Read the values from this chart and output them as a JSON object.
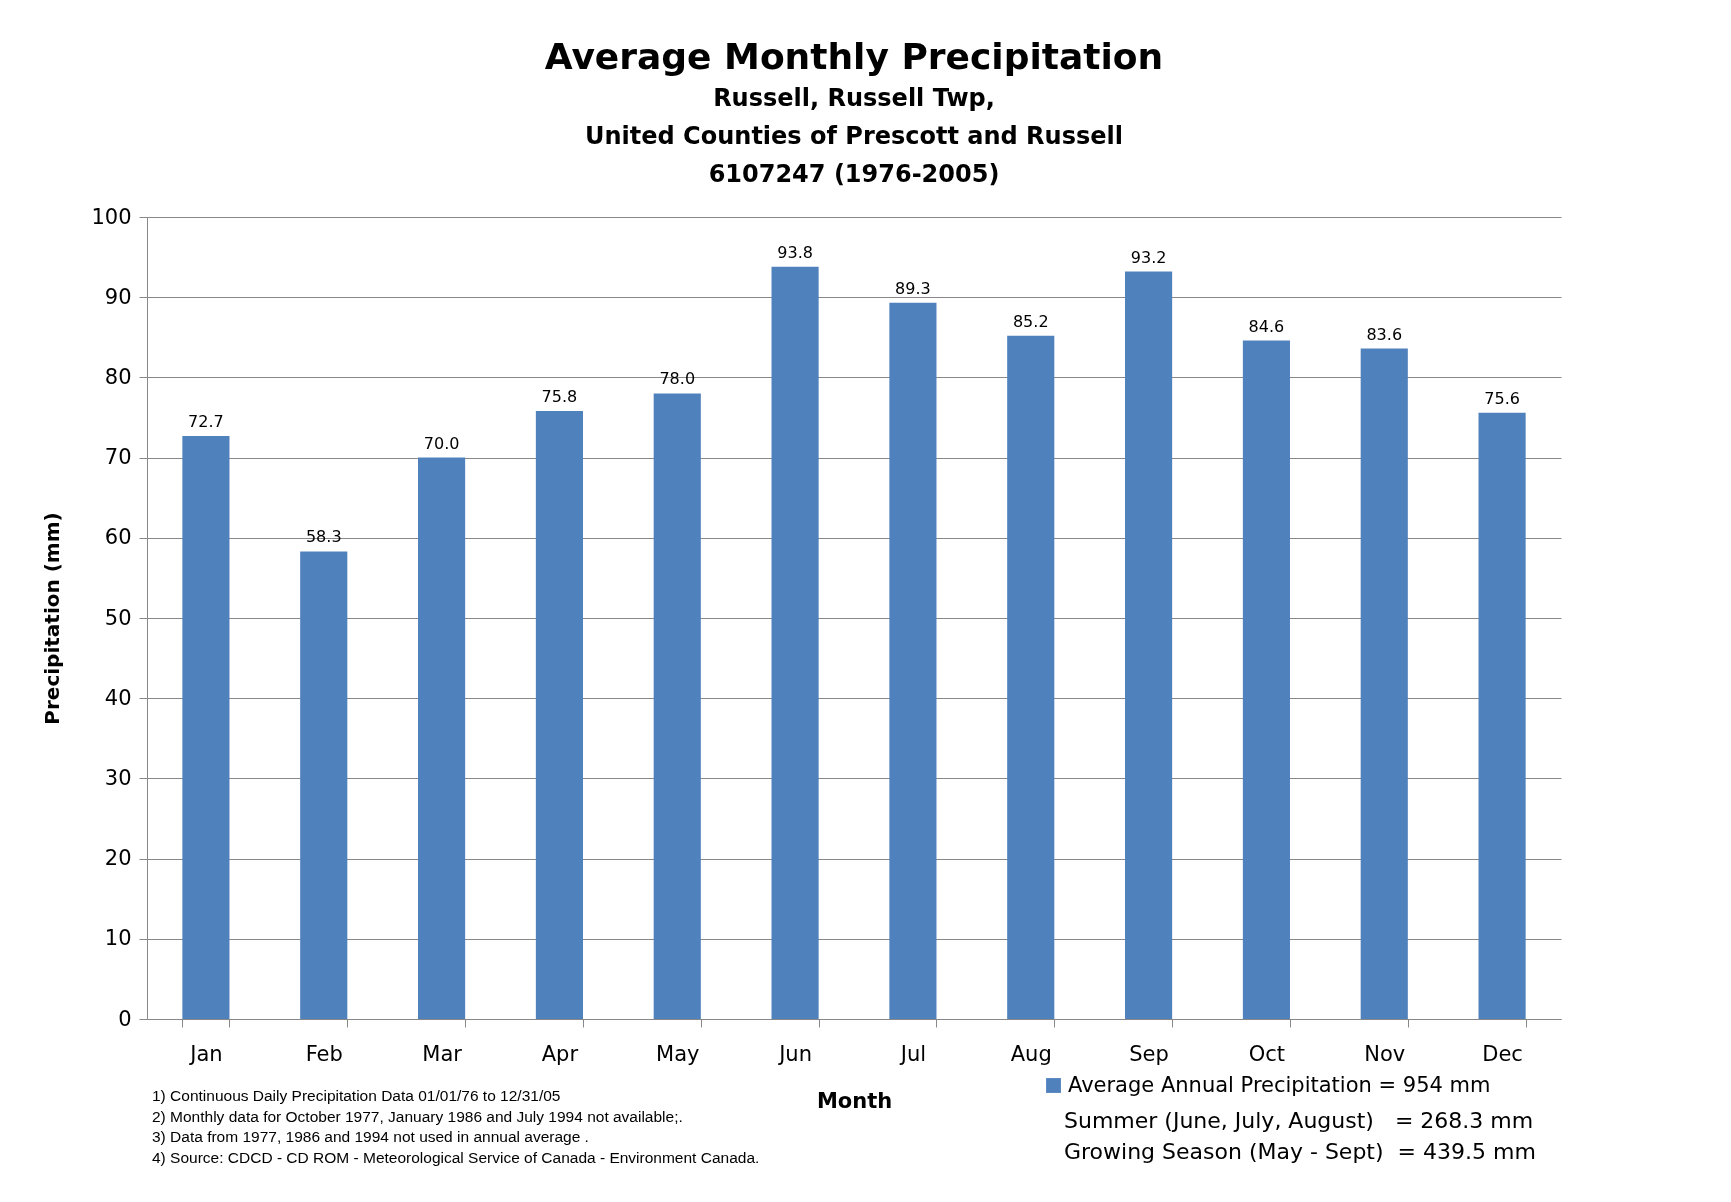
{
  "chart_data": {
    "type": "bar",
    "title": "Average Monthly Precipitation",
    "subtitle": "Russell, Russell Twp,\nUnited Counties of Prescott and Russell\n6107247 (1976-2005)",
    "xlabel": "Month",
    "ylabel": "Precipitation (mm)",
    "categories": [
      "Jan",
      "Feb",
      "Mar",
      "Apr",
      "May",
      "Jun",
      "Jul",
      "Aug",
      "Sep",
      "Oct",
      "Nov",
      "Dec"
    ],
    "series": [
      {
        "name": "Average Annual Precipitation = 954 mm",
        "color": "#4f81bd",
        "values": [
          72.7,
          58.3,
          70.0,
          75.8,
          78.0,
          93.8,
          89.3,
          85.2,
          93.2,
          84.6,
          83.6,
          75.6
        ]
      }
    ],
    "ylim": [
      0,
      100
    ],
    "yticks": [
      0,
      10,
      20,
      30,
      40,
      50,
      60,
      70,
      80,
      90,
      100
    ],
    "grid": "y",
    "legend": "bottom right",
    "value_labels": [
      "72.7",
      "58.3",
      "70.0",
      "75.8",
      "78.0",
      "93.8",
      "89.3",
      "85.2",
      "93.2",
      "84.6",
      "83.6",
      "75.6"
    ],
    "annotations": [
      "1) Continuous Daily Precipitation Data 01/01/76 to 12/31/05",
      "2) Monthly data for October 1977, January 1986 and July 1994 not available;.",
      "3) Data from 1977, 1986 and 1994 not used in annual average .",
      "4) Source: CDCD - CD ROM - Meteorological Service of Canada - Environment Canada.",
      "Summer (June, July, August)   = 268.3 mm",
      "Growing Season (May - Sept)  = 439.5 mm"
    ]
  }
}
